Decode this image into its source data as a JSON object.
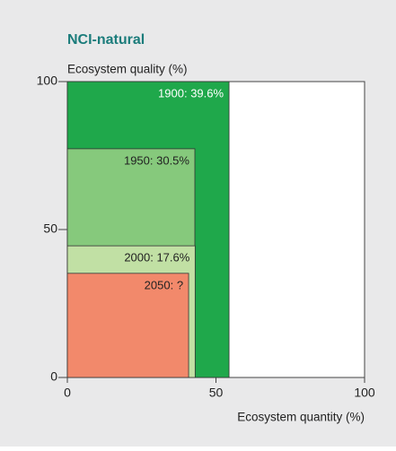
{
  "chart_data": {
    "type": "nested-rect",
    "title": "NCI-natural",
    "y_label": "Ecosystem quality (%)",
    "x_label": "Ecosystem quantity (%)",
    "xlim": [
      0,
      100
    ],
    "ylim": [
      0,
      100
    ],
    "xticks": [
      0,
      50,
      100
    ],
    "yticks": [
      0,
      50,
      100
    ],
    "series": [
      {
        "name": "1900: 39.6%",
        "color": "#1fa84b",
        "x": 54.4,
        "y": 100
      },
      {
        "name": "1950: 30.5%",
        "color": "#86c97c",
        "x": 42.9,
        "y": 77.3
      },
      {
        "name": "2000: 17.6%",
        "color": "#c1e0a4",
        "x": 43,
        "y": 44.5
      },
      {
        "name": "2050: ?",
        "color": "#f2896b",
        "x": 40.8,
        "y": 35.2
      }
    ]
  }
}
